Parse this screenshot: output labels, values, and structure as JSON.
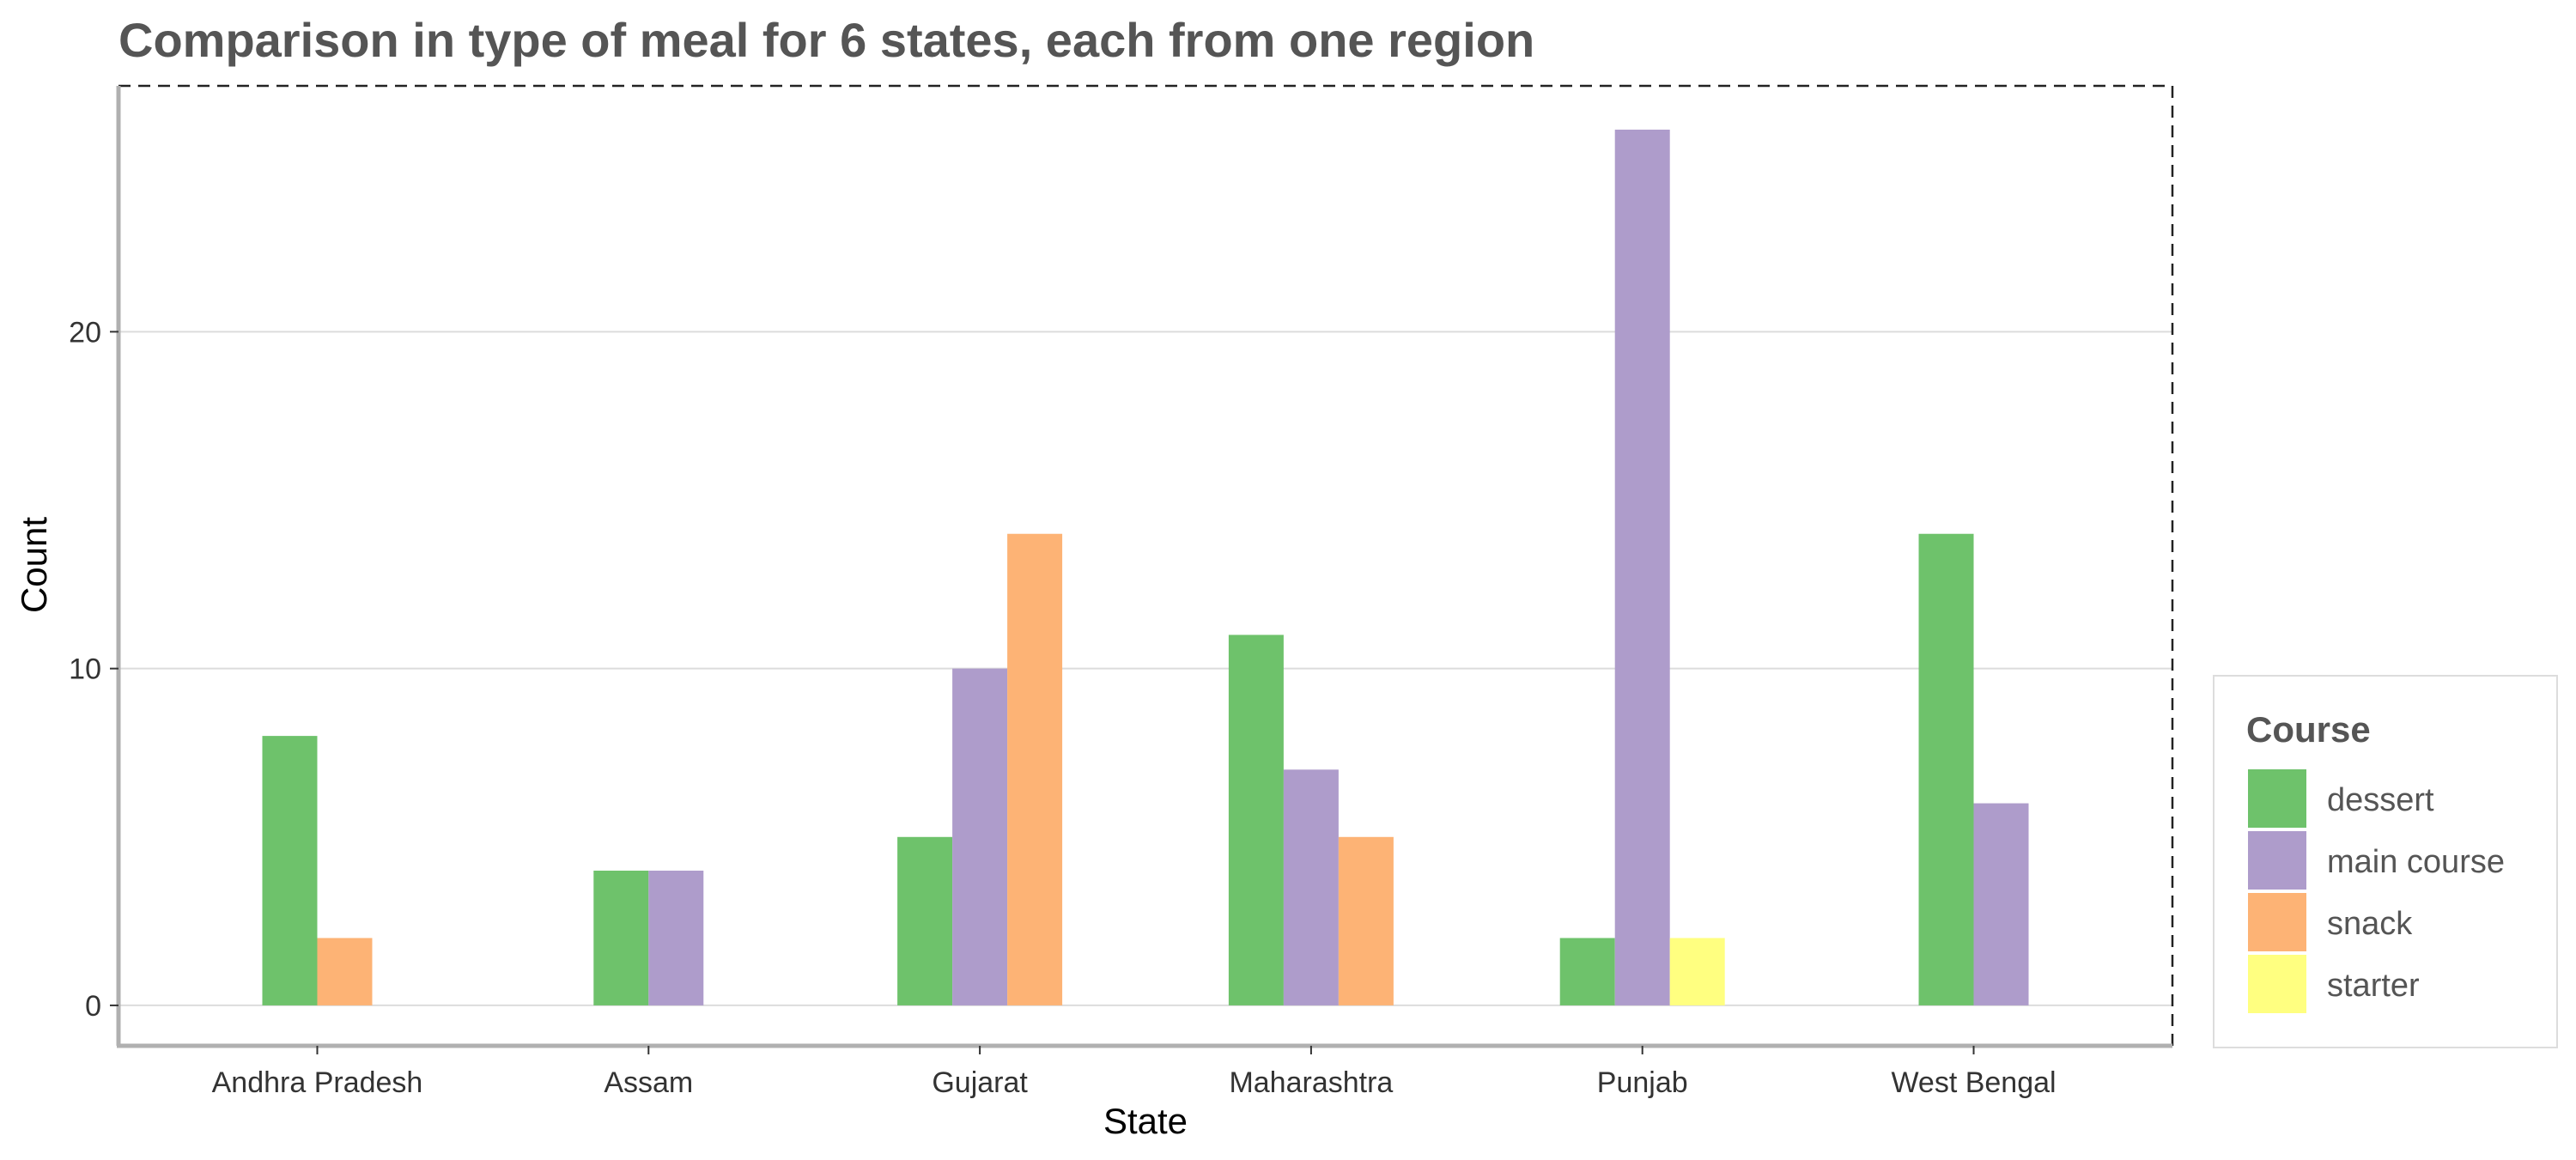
{
  "chart_data": {
    "type": "bar",
    "title": "Comparison in type of meal for 6 states, each from one region",
    "xlabel": "State",
    "ylabel": "Count",
    "categories": [
      "Andhra Pradesh",
      "Assam",
      "Gujarat",
      "Maharashtra",
      "Punjab",
      "West Bengal"
    ],
    "ylim": [
      -1.2,
      27.3
    ],
    "yticks": [
      0,
      10,
      20
    ],
    "grid": true,
    "legend": {
      "title": "Course",
      "placement": "bottom-right"
    },
    "series": [
      {
        "name": "dessert",
        "color": "#6EC26B",
        "values": [
          8,
          4,
          5,
          11,
          2,
          14
        ]
      },
      {
        "name": "main course",
        "color": "#AE9CCB",
        "values": [
          0,
          4,
          10,
          7,
          26,
          6
        ]
      },
      {
        "name": "snack",
        "color": "#FDB375",
        "values": [
          2,
          0,
          14,
          5,
          0,
          0
        ]
      },
      {
        "name": "starter",
        "color": "#FFFF80",
        "values": [
          0,
          0,
          0,
          0,
          2,
          0
        ]
      }
    ]
  }
}
